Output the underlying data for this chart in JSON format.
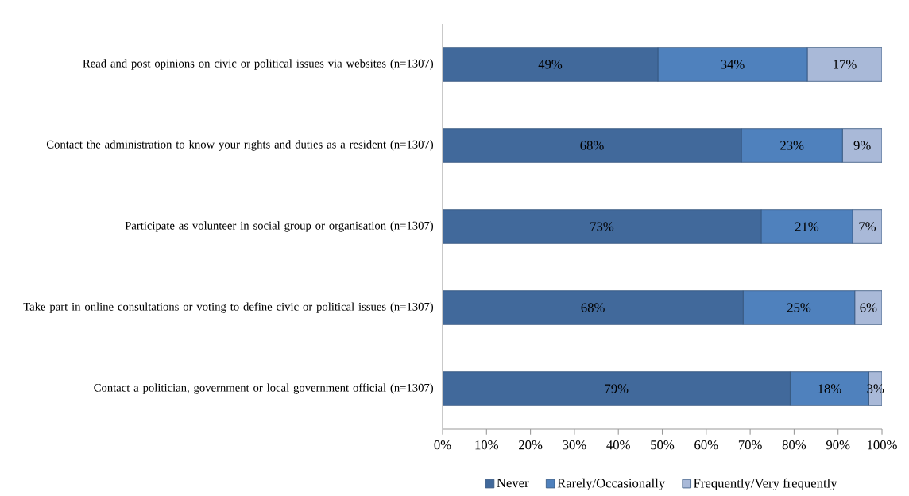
{
  "chart_data": {
    "type": "bar",
    "orientation": "horizontal",
    "stacked": true,
    "categories": [
      "Read and post opinions on civic or political issues via websites (n=1307)",
      "Contact the administration to know your rights and duties as a resident (n=1307)",
      "Participate as volunteer in social group or organisation (n=1307)",
      "Take part in online consultations or voting to define civic or political issues (n=1307)",
      "Contact a politician, government or local government official (n=1307)"
    ],
    "series": [
      {
        "name": "Never",
        "color": "#41699b",
        "values": [
          49,
          68,
          72.5,
          68.4,
          79.1
        ],
        "value_labels": [
          "49%",
          "68%",
          "73%",
          "68%",
          "79%"
        ]
      },
      {
        "name": "Rarely/Occasionally",
        "color": "#4f81bd",
        "values": [
          34,
          23,
          20.8,
          25.4,
          17.9
        ],
        "value_labels": [
          "34%",
          "23%",
          "21%",
          "25%",
          "18%"
        ]
      },
      {
        "name": "Frequently/Very frequently",
        "color": "#a9b9d8",
        "values": [
          17,
          9,
          6.7,
          6.2,
          3.0
        ],
        "value_labels": [
          "17%",
          "9%",
          "7%",
          "6%",
          "3%"
        ]
      }
    ],
    "xlim": [
      0,
      100
    ],
    "xticks": [
      {
        "value": 0,
        "label": "0%"
      },
      {
        "value": 10,
        "label": "10%"
      },
      {
        "value": 20,
        "label": "20%"
      },
      {
        "value": 30,
        "label": "30%"
      },
      {
        "value": 40,
        "label": "40%"
      },
      {
        "value": 50,
        "label": "50%"
      },
      {
        "value": 60,
        "label": "60%"
      },
      {
        "value": 70,
        "label": "70%"
      },
      {
        "value": 80,
        "label": "80%"
      },
      {
        "value": 90,
        "label": "90%"
      },
      {
        "value": 100,
        "label": "100%"
      }
    ],
    "grid": false,
    "legend": "bottom"
  }
}
